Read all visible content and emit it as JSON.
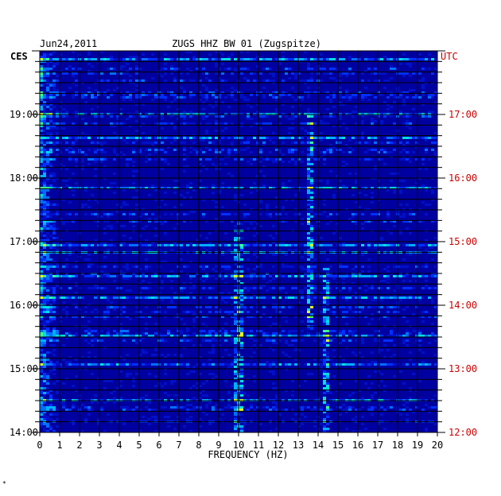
{
  "header": {
    "date": "Jun24,2011",
    "station": "ZUGS HHZ BW 01 (Zugspitze)",
    "left_tz": "CES",
    "right_tz": "UTC"
  },
  "footer": {
    "mark": "*"
  },
  "colors": {
    "background": "#0000a0",
    "grid": "#000000",
    "utc_label": "#cc0000",
    "axis_text": "#000000"
  },
  "chart_data": {
    "type": "heatmap",
    "title": "ZUGS HHZ BW 01 (Zugspitze)",
    "xlabel": "FREQUENCY (HZ)",
    "xlim": [
      0,
      20
    ],
    "x_ticks": [
      "0",
      "1",
      "2",
      "3",
      "4",
      "5",
      "6",
      "7",
      "8",
      "9",
      "10",
      "11",
      "12",
      "13",
      "14",
      "15",
      "16",
      "17",
      "18",
      "19",
      "20"
    ],
    "left_y_ticks": [
      {
        "label": "19:00",
        "hour": 19
      },
      {
        "label": "18:00",
        "hour": 18
      },
      {
        "label": "17:00",
        "hour": 17
      },
      {
        "label": "16:00",
        "hour": 16
      },
      {
        "label": "15:00",
        "hour": 15
      },
      {
        "label": "14:00",
        "hour": 14
      }
    ],
    "right_y_ticks": [
      {
        "label": "17:00",
        "hour": 19
      },
      {
        "label": "16:00",
        "hour": 18
      },
      {
        "label": "15:00",
        "hour": 17
      },
      {
        "label": "14:00",
        "hour": 16
      },
      {
        "label": "13:00",
        "hour": 15
      },
      {
        "label": "12:00",
        "hour": 14
      }
    ],
    "time_range_local_hours": [
      14.0,
      20.0
    ],
    "features": [
      {
        "name": "low-frequency energy",
        "freq": [
          0.0,
          1.0
        ]
      },
      {
        "name": "band",
        "freq": [
          9.7,
          10.2
        ],
        "hours": [
          14.0,
          17.3
        ]
      },
      {
        "name": "band",
        "freq": [
          13.4,
          13.8
        ],
        "hours": [
          15.6,
          19.0
        ]
      },
      {
        "name": "band",
        "freq": [
          14.2,
          14.6
        ],
        "hours": [
          14.0,
          16.6
        ]
      }
    ]
  }
}
